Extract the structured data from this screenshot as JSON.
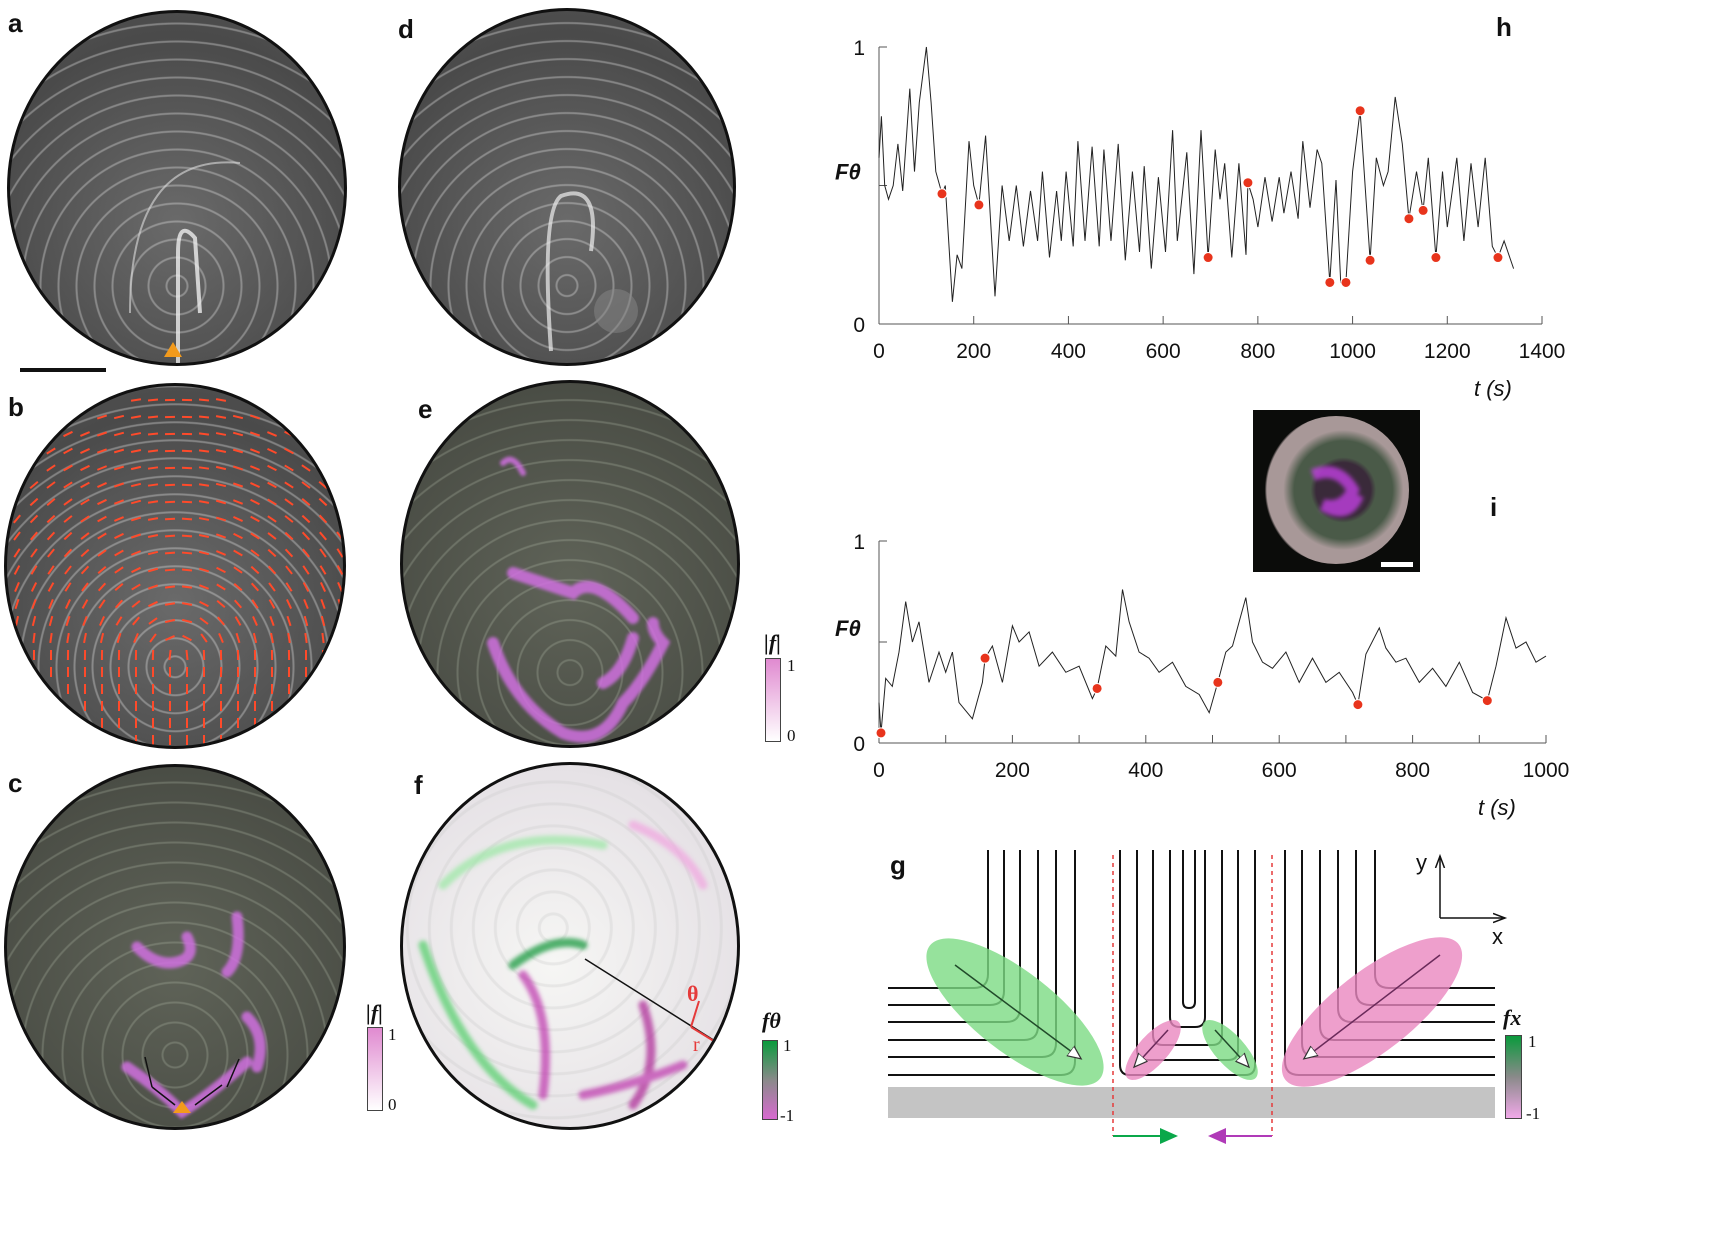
{
  "panel_labels": {
    "a": "a",
    "b": "b",
    "c": "c",
    "d": "d",
    "e": "e",
    "f": "f",
    "g": "g",
    "h": "h",
    "i": "i"
  },
  "colorbars": {
    "c": {
      "title": "|f|",
      "max": "1",
      "min": "0",
      "colors": [
        "#e08ad0",
        "#ffffff"
      ]
    },
    "e": {
      "title": "|f|",
      "max": "1",
      "min": "0",
      "colors": [
        "#e08ad0",
        "#ffffff"
      ]
    },
    "f": {
      "title": "fθ",
      "max": "1",
      "min": "-1",
      "colors": [
        "#0a9a3c",
        "#8a8a8a",
        "#d86ad0"
      ]
    },
    "g": {
      "title": "fx",
      "max": "1",
      "min": "-1",
      "colors": [
        "#0a9a3c",
        "#8a8a8a",
        "#f0a8e8"
      ]
    }
  },
  "panel_f": {
    "theta_label": "θ",
    "r_label": "r"
  },
  "panel_g": {
    "y_axis": "y",
    "x_axis": "x",
    "colors": {
      "green": "#7ddc84",
      "pink": "#ea88c0",
      "dashed": "#e53a3a"
    }
  },
  "marker_color": "#e8341c",
  "chart_data": [
    {
      "id": "h",
      "type": "line",
      "ylabel": "Fθ",
      "xlabel": "t (s)",
      "xlim": [
        0,
        1400
      ],
      "ylim": [
        0,
        1
      ],
      "grid": false,
      "xticks": [
        "0",
        "200",
        "400",
        "600",
        "800",
        "1000",
        "1200",
        "1400"
      ],
      "yticks": [
        "0",
        "1"
      ],
      "series": [
        {
          "t": [
            0,
            5,
            12,
            20,
            30,
            40,
            50,
            65,
            75,
            85,
            100,
            110,
            120,
            133,
            140,
            155,
            165,
            175,
            190,
            200,
            211,
            225,
            245,
            260,
            275,
            290,
            305,
            320,
            335,
            345,
            360,
            375,
            385,
            395,
            410,
            420,
            435,
            450,
            465,
            475,
            490,
            505,
            520,
            535,
            550,
            560,
            575,
            590,
            605,
            620,
            630,
            650,
            665,
            680,
            695,
            710,
            720,
            730,
            745,
            760,
            775,
            779,
            790,
            800,
            815,
            830,
            845,
            855,
            870,
            885,
            895,
            910,
            925,
            935,
            952,
            965,
            975,
            986,
            1000,
            1016,
            1037,
            1050,
            1065,
            1075,
            1090,
            1105,
            1119,
            1135,
            1149,
            1160,
            1176,
            1190,
            1200,
            1220,
            1235,
            1250,
            1265,
            1280,
            1295,
            1307,
            1320,
            1340
          ],
          "F": [
            0.6,
            0.75,
            0.5,
            0.45,
            0.5,
            0.65,
            0.48,
            0.85,
            0.55,
            0.8,
            1.0,
            0.8,
            0.55,
            0.47,
            0.5,
            0.08,
            0.25,
            0.2,
            0.66,
            0.5,
            0.43,
            0.68,
            0.1,
            0.5,
            0.3,
            0.5,
            0.28,
            0.48,
            0.3,
            0.55,
            0.24,
            0.48,
            0.3,
            0.55,
            0.28,
            0.66,
            0.3,
            0.64,
            0.28,
            0.63,
            0.3,
            0.65,
            0.23,
            0.55,
            0.26,
            0.57,
            0.2,
            0.53,
            0.26,
            0.7,
            0.3,
            0.62,
            0.18,
            0.7,
            0.24,
            0.63,
            0.45,
            0.58,
            0.24,
            0.58,
            0.25,
            0.51,
            0.45,
            0.35,
            0.53,
            0.37,
            0.53,
            0.4,
            0.55,
            0.38,
            0.66,
            0.42,
            0.63,
            0.58,
            0.15,
            0.52,
            0.15,
            0.15,
            0.55,
            0.77,
            0.23,
            0.6,
            0.5,
            0.55,
            0.82,
            0.65,
            0.38,
            0.55,
            0.41,
            0.6,
            0.24,
            0.55,
            0.35,
            0.6,
            0.3,
            0.58,
            0.35,
            0.6,
            0.28,
            0.24,
            0.3,
            0.2
          ]
        }
      ],
      "markers": {
        "t": [
          133,
          211,
          695,
          779,
          952,
          986,
          1016,
          1037,
          1119,
          1149,
          1176,
          1307
        ],
        "F": [
          0.47,
          0.43,
          0.24,
          0.51,
          0.15,
          0.15,
          0.77,
          0.23,
          0.38,
          0.41,
          0.24,
          0.24
        ]
      }
    },
    {
      "id": "i",
      "type": "line",
      "ylabel": "Fθ",
      "xlabel": "t (s)",
      "xlim": [
        0,
        1000
      ],
      "ylim": [
        0,
        1
      ],
      "grid": false,
      "xticks": [
        "0",
        "200",
        "400",
        "600",
        "800",
        "1000"
      ],
      "yticks": [
        "0",
        "1"
      ],
      "series": [
        {
          "t": [
            0,
            3,
            10,
            20,
            30,
            40,
            50,
            60,
            75,
            90,
            100,
            110,
            120,
            140,
            155,
            159,
            170,
            185,
            200,
            210,
            225,
            240,
            260,
            280,
            300,
            320,
            327,
            340,
            355,
            365,
            375,
            390,
            405,
            420,
            440,
            460,
            480,
            495,
            508,
            520,
            530,
            550,
            560,
            575,
            590,
            610,
            630,
            650,
            670,
            690,
            710,
            718,
            730,
            750,
            760,
            775,
            790,
            810,
            830,
            850,
            870,
            890,
            912,
            925,
            940,
            955,
            970,
            985,
            1000
          ],
          "F": [
            0.2,
            0.05,
            0.32,
            0.28,
            0.45,
            0.7,
            0.5,
            0.6,
            0.3,
            0.45,
            0.35,
            0.45,
            0.2,
            0.12,
            0.3,
            0.42,
            0.48,
            0.3,
            0.58,
            0.5,
            0.55,
            0.38,
            0.45,
            0.35,
            0.38,
            0.22,
            0.27,
            0.48,
            0.43,
            0.76,
            0.6,
            0.45,
            0.42,
            0.35,
            0.4,
            0.28,
            0.24,
            0.15,
            0.3,
            0.45,
            0.48,
            0.72,
            0.5,
            0.4,
            0.37,
            0.45,
            0.3,
            0.42,
            0.3,
            0.35,
            0.25,
            0.19,
            0.44,
            0.57,
            0.47,
            0.4,
            0.42,
            0.3,
            0.37,
            0.28,
            0.4,
            0.25,
            0.21,
            0.38,
            0.62,
            0.47,
            0.5,
            0.4,
            0.43
          ]
        }
      ],
      "markers": {
        "t": [
          3,
          159,
          327,
          508,
          718,
          912
        ],
        "F": [
          0.05,
          0.42,
          0.27,
          0.3,
          0.19,
          0.21
        ]
      }
    }
  ]
}
